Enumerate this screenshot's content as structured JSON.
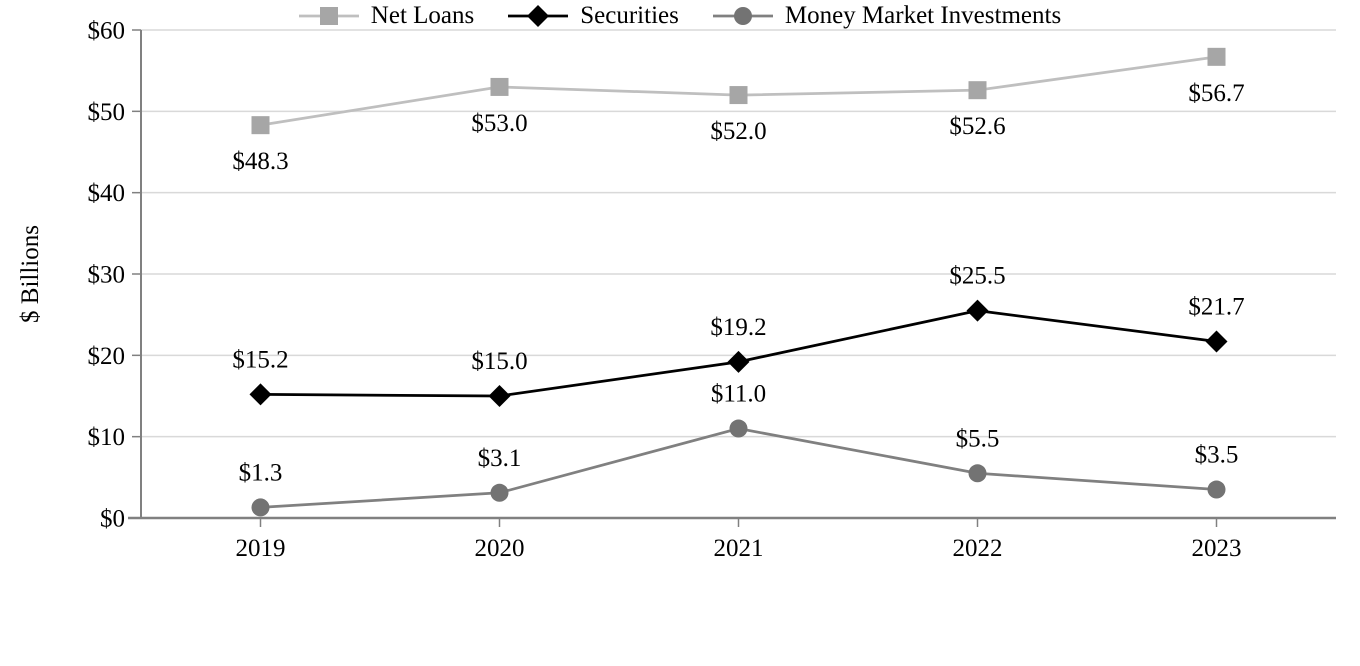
{
  "chart_data": {
    "type": "line",
    "title": "",
    "xlabel": "",
    "ylabel": "$ Billions",
    "categories": [
      "2019",
      "2020",
      "2021",
      "2022",
      "2023"
    ],
    "series": [
      {
        "name": "Net Loans",
        "values": [
          48.3,
          53.0,
          52.0,
          52.6,
          56.7
        ],
        "point_labels": [
          "$48.3",
          "$53.0",
          "$52.0",
          "$52.6",
          "$56.7"
        ],
        "marker": "square",
        "marker_color": "#a6a6a6",
        "line_color": "#bfbfbf",
        "label_position": "below"
      },
      {
        "name": "Securities",
        "values": [
          15.2,
          15.0,
          19.2,
          25.5,
          21.7
        ],
        "point_labels": [
          "$15.2",
          "$15.0",
          "$19.2",
          "$25.5",
          "$21.7"
        ],
        "marker": "diamond",
        "marker_color": "#000000",
        "line_color": "#000000",
        "label_position": "above"
      },
      {
        "name": "Money Market Investments",
        "values": [
          1.3,
          3.1,
          11.0,
          5.5,
          3.5
        ],
        "point_labels": [
          "$1.3",
          "$3.1",
          "$11.0",
          "$5.5",
          "$3.5"
        ],
        "marker": "circle",
        "marker_color": "#737373",
        "line_color": "#808080",
        "label_position": "above"
      }
    ],
    "y_tick_values": [
      0,
      10,
      20,
      30,
      40,
      50,
      60
    ],
    "y_tick_labels": [
      "$0",
      "$10",
      "$20",
      "$30",
      "$40",
      "$50",
      "$60"
    ],
    "ylim": [
      0,
      60
    ],
    "grid": "horizontal",
    "legend_position": "bottom",
    "colors": {
      "axis": "#808080",
      "gridline": "#d9d9d9",
      "text": "#000000",
      "background": "#ffffff"
    }
  }
}
